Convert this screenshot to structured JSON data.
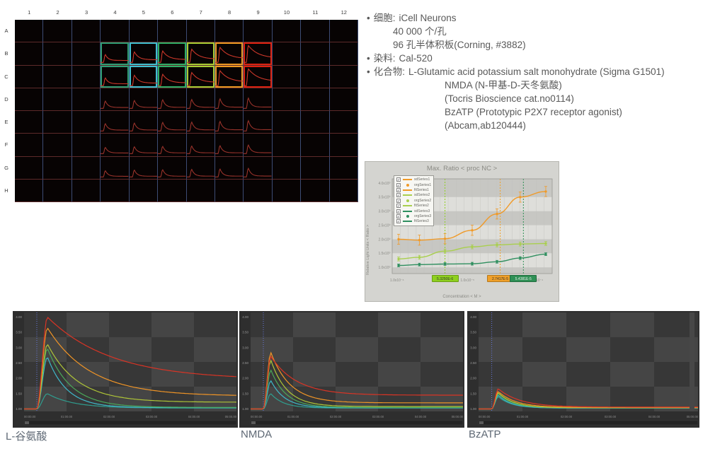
{
  "icons": {
    "checkbox": "✓"
  },
  "notes": {
    "bullet": "•",
    "bullets": [
      {
        "label": "细胞:",
        "value": "iCell Neurons",
        "sub": [
          "40 000 个/孔",
          "96 孔半体积板(Corning, #3882)"
        ],
        "sub_indent": "small"
      },
      {
        "label": "染料:",
        "value": "Cal-520",
        "sub": [],
        "sub_indent": "small"
      },
      {
        "label": "化合物:",
        "value": "L-Glutamic acid potassium salt monohydrate (Sigma G1501)",
        "sub": [
          "NMDA (N-甲基-D-天冬氨酸)",
          "(Tocris Bioscience cat.no0114)",
          "BzATP (Prototypic P2X7 receptor agonist)",
          "(Abcam,ab120444)"
        ],
        "sub_indent": "large"
      }
    ]
  },
  "plate": {
    "columns": [
      "1",
      "2",
      "3",
      "4",
      "5",
      "6",
      "7",
      "8",
      "9",
      "10",
      "11",
      "12"
    ],
    "rows": [
      "A",
      "B",
      "C",
      "D",
      "E",
      "F",
      "G",
      "H"
    ],
    "well_border_colors": [
      "#2e9e74",
      "#3fc0d0",
      "#2fae66",
      "#a8cc33",
      "#ee9922",
      "#dd2211"
    ],
    "trace_color_bright": "#cf382a",
    "trace_color_dim": "#9a332b",
    "trace_amplitudes": {
      "bc": [
        0.45,
        0.6,
        0.65,
        0.75,
        0.85,
        0.95
      ],
      "de": [
        0.42,
        0.46,
        0.5,
        0.52,
        0.56,
        0.6
      ],
      "fg": [
        0.36,
        0.4,
        0.42,
        0.44,
        0.46,
        0.5
      ]
    },
    "groups": [
      {
        "label": "L-Glutamic acid",
        "rows": "B-C",
        "cols": "4-9"
      },
      {
        "label": "NMDA",
        "rows": "D-E",
        "cols": "4-9"
      },
      {
        "label": "BzATP",
        "rows": "F-G",
        "cols": "4-9"
      }
    ]
  },
  "chart_data": [
    {
      "id": "dose_response",
      "type": "line",
      "title": "Max. Ratio < proc NC >",
      "xlabel": "Concentration < M >",
      "ylabel": "Relative Light Units < Ratio >",
      "x_scale": "log",
      "legend_position": "top-left",
      "grid": true,
      "y_ticks": [
        "4.0x10⁰",
        "3.5x10⁰",
        "3.0x10⁰",
        "2.5x10⁰",
        "2.0x10⁰",
        "1.5x10⁰",
        "1.0x10⁰"
      ],
      "y_tick_values": [
        4.0,
        3.5,
        3.0,
        2.5,
        2.0,
        1.5,
        1.0
      ],
      "x_ticks": [
        {
          "label": "1.0x10⁻⁶",
          "pos": 0.03
        },
        {
          "label": "1.0x10⁻⁵",
          "pos": 0.47
        },
        {
          "label": "1.0x10⁻⁴",
          "pos": 0.9
        }
      ],
      "legend": [
        {
          "label": "sdSeries1",
          "color": "#f09a28",
          "type": "line"
        },
        {
          "label": "orgSeries1",
          "color": "#f09a28",
          "type": "dot"
        },
        {
          "label": "fitSeries1",
          "color": "#f09a28",
          "type": "line"
        },
        {
          "label": "sdSeries2",
          "color": "#a9cf4e",
          "type": "line"
        },
        {
          "label": "orgSeries2",
          "color": "#a9cf4e",
          "type": "dot"
        },
        {
          "label": "fitSeries2",
          "color": "#a9cf4e",
          "type": "line"
        },
        {
          "label": "sdSeries3",
          "color": "#2f8f5f",
          "type": "line"
        },
        {
          "label": "orgSeries3",
          "color": "#2f8f5f",
          "type": "dot"
        },
        {
          "label": "fitSeries3",
          "color": "#2f8f5f",
          "type": "line"
        }
      ],
      "series": [
        {
          "name": "Series1",
          "color": "#f09a28",
          "err": 0.18,
          "points": [
            [
              0.04,
              2.0
            ],
            [
              0.17,
              1.97
            ],
            [
              0.33,
              2.02
            ],
            [
              0.5,
              2.32
            ],
            [
              0.655,
              2.9
            ],
            [
              0.8,
              3.5
            ],
            [
              0.96,
              3.7
            ]
          ]
        },
        {
          "name": "Series2",
          "color": "#a9cf4e",
          "err": 0.07,
          "points": [
            [
              0.04,
              1.3
            ],
            [
              0.17,
              1.36
            ],
            [
              0.33,
              1.58
            ],
            [
              0.5,
              1.73
            ],
            [
              0.655,
              1.8
            ],
            [
              0.8,
              1.83
            ],
            [
              0.96,
              1.85
            ]
          ]
        },
        {
          "name": "Series3",
          "color": "#2f8f5f",
          "err": 0.05,
          "points": [
            [
              0.04,
              1.07
            ],
            [
              0.17,
              1.1
            ],
            [
              0.33,
              1.12
            ],
            [
              0.5,
              1.13
            ],
            [
              0.655,
              1.2
            ],
            [
              0.8,
              1.33
            ],
            [
              0.96,
              1.47
            ]
          ]
        }
      ],
      "ec50_markers": [
        {
          "value": "5.3250E-6",
          "pos": 0.33,
          "color": "#8ed01e",
          "text": "#333333"
        },
        {
          "value": "2.7417E-5",
          "pos": 0.675,
          "color": "#f0a028",
          "text": "#333333"
        },
        {
          "value": "5.4381E-5",
          "pos": 0.82,
          "color": "#2e9055",
          "text": "#eeeeee"
        }
      ]
    },
    {
      "id": "kinetic_l_glutamic",
      "type": "line",
      "label": "L-谷氨酸",
      "rise": 0.05,
      "y_ticks": [
        "4.00",
        "3.50",
        "3.00",
        "2.50",
        "2.00",
        "1.50",
        "1.00"
      ],
      "x_ticks": [
        "00:00.00",
        "01:00.00",
        "02:00.00",
        "03:00.00",
        "04:00.00",
        "05:00.00"
      ],
      "series": [
        {
          "color": "#d93425",
          "peak": 4.0,
          "end": 1.95,
          "tau": 0.3
        },
        {
          "color": "#ef9426",
          "peak": 3.65,
          "end": 1.42,
          "tau": 0.2
        },
        {
          "color": "#aec437",
          "peak": 3.12,
          "end": 1.22,
          "tau": 0.14
        },
        {
          "color": "#4aa85a",
          "peak": 2.98,
          "end": 1.05,
          "tau": 0.11
        },
        {
          "color": "#3fb8c9",
          "peak": 2.7,
          "end": 1.04,
          "tau": 0.09
        },
        {
          "color": "#2f9e8f",
          "peak": 1.5,
          "end": 1.03,
          "tau": 0.12
        }
      ]
    },
    {
      "id": "kinetic_nmda",
      "type": "line",
      "label": "NMDA",
      "rise": 0.035,
      "y_ticks": [
        "4.00",
        "3.50",
        "3.00",
        "2.50",
        "2.00",
        "1.50",
        "1.00"
      ],
      "x_ticks": [
        "00:00.00",
        "01:00.00",
        "02:00.00",
        "03:00.00",
        "04:00.00",
        "05:00.00"
      ],
      "series": [
        {
          "color": "#d93425",
          "peak": 2.72,
          "end": 1.45,
          "tau": 0.12
        },
        {
          "color": "#ef9426",
          "peak": 2.85,
          "end": 1.2,
          "tau": 0.09
        },
        {
          "color": "#aec437",
          "peak": 2.6,
          "end": 1.08,
          "tau": 0.075
        },
        {
          "color": "#4aa85a",
          "peak": 2.28,
          "end": 1.05,
          "tau": 0.07
        },
        {
          "color": "#3fb8c9",
          "peak": 1.93,
          "end": 1.04,
          "tau": 0.065
        },
        {
          "color": "#2f9e8f",
          "peak": 1.5,
          "end": 1.03,
          "tau": 0.06
        }
      ]
    },
    {
      "id": "kinetic_bzatp",
      "type": "line",
      "label": "BzATP",
      "rise": 0.03,
      "y_ticks": [
        "4.00",
        "3.50",
        "3.00",
        "2.50",
        "2.00",
        "1.50",
        "1.00"
      ],
      "x_ticks": [
        "00:00.00",
        "01:00.00",
        "02:00.00",
        "03:00.00",
        "04:00.00",
        "05:00.00"
      ],
      "series": [
        {
          "color": "#d93425",
          "peak": 1.66,
          "end": 1.06,
          "tau": 0.1
        },
        {
          "color": "#ef9426",
          "peak": 1.57,
          "end": 1.05,
          "tau": 0.08
        },
        {
          "color": "#aec437",
          "peak": 1.53,
          "end": 1.04,
          "tau": 0.07
        },
        {
          "color": "#4aa85a",
          "peak": 1.5,
          "end": 1.04,
          "tau": 0.065
        },
        {
          "color": "#3fb8c9",
          "peak": 1.45,
          "end": 1.03,
          "tau": 0.06
        },
        {
          "color": "#2f9e8f",
          "peak": 1.4,
          "end": 1.03,
          "tau": 0.06
        }
      ]
    }
  ]
}
